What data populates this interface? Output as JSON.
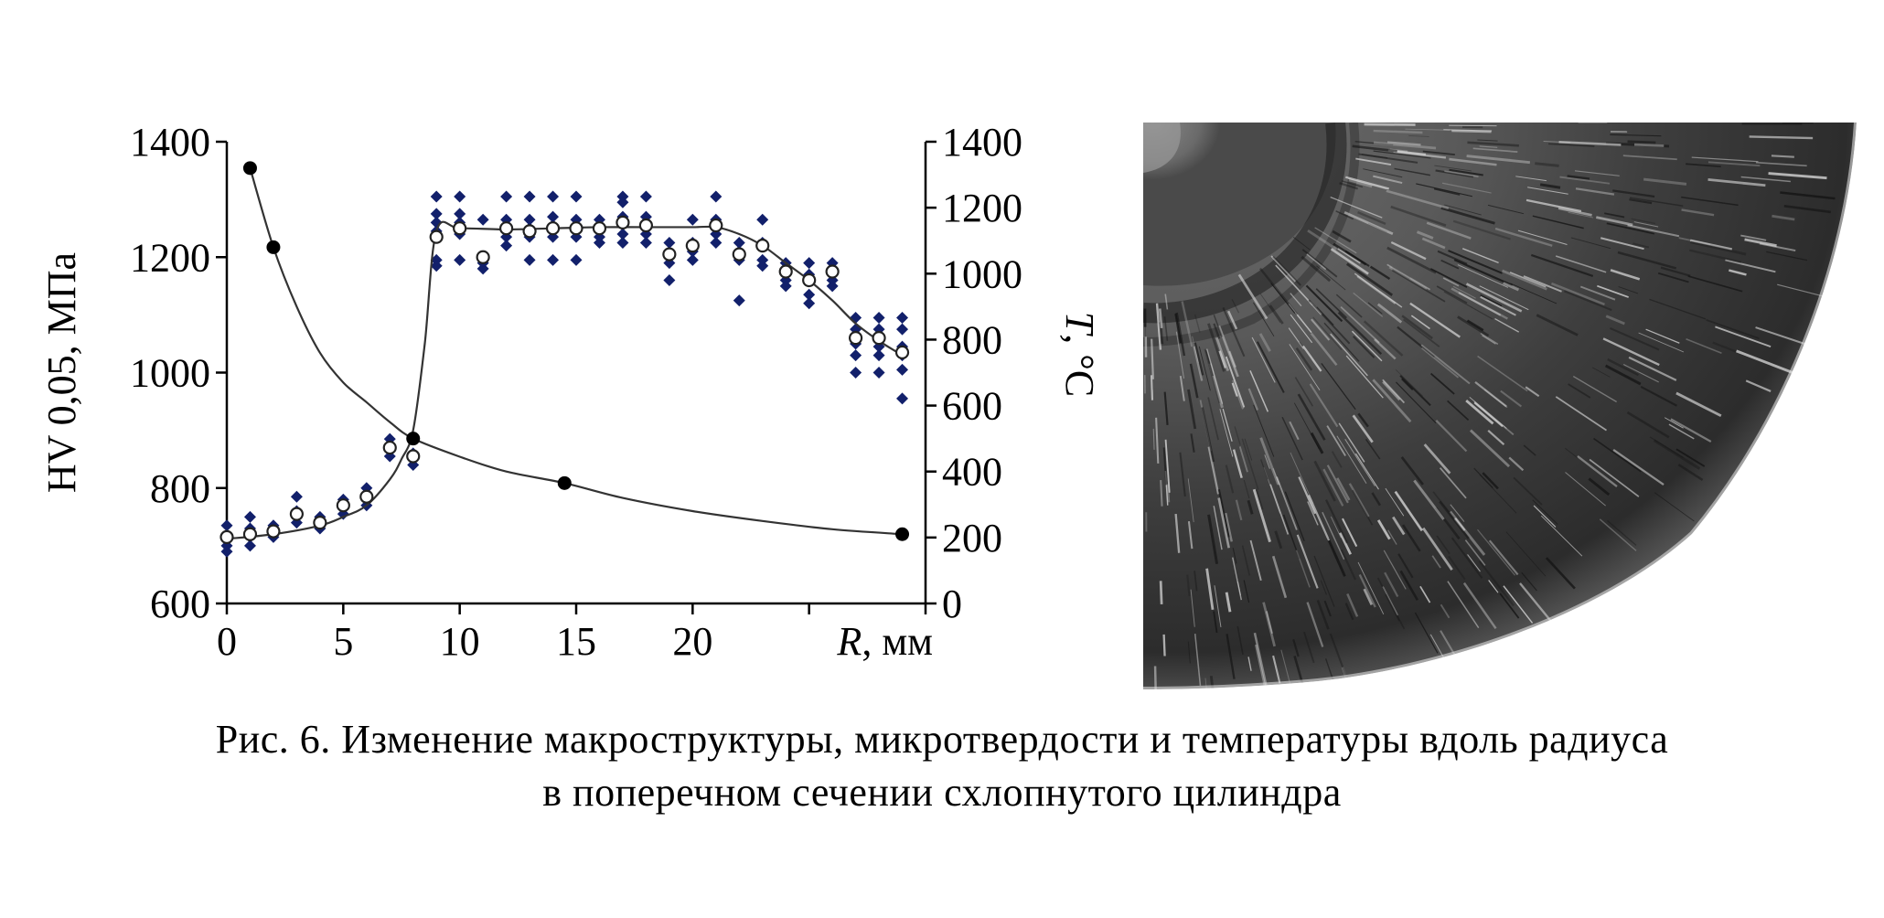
{
  "chart_data": {
    "type": "scatter",
    "x_range": [
      0,
      30
    ],
    "x_ticks": [
      "0",
      "5",
      "10",
      "15",
      "20"
    ],
    "x_tick_values": [
      0,
      5,
      10,
      15,
      20
    ],
    "xlabel_italic": "R",
    "xlabel_rest": ", мм",
    "left_axis": {
      "label": "HV 0,05, МПа",
      "range": [
        600,
        1400
      ],
      "ticks": [
        "600",
        "800",
        "1000",
        "1200",
        "1400"
      ]
    },
    "right_axis": {
      "label_italic": "T",
      "label_rest": ", °С",
      "range": [
        0,
        1400
      ],
      "ticks": [
        "0",
        "200",
        "400",
        "600",
        "800",
        "1000",
        "1200",
        "1400"
      ]
    },
    "grid": false,
    "series": [
      {
        "role": "hardness measurements",
        "axis": "left",
        "color": "#12206b",
        "marker": "diamond",
        "points": [
          [
            0,
            735
          ],
          [
            0,
            715
          ],
          [
            0,
            700
          ],
          [
            0,
            690
          ],
          [
            1,
            750
          ],
          [
            1,
            730
          ],
          [
            1,
            715
          ],
          [
            1,
            700
          ],
          [
            2,
            735
          ],
          [
            2,
            725
          ],
          [
            2,
            715
          ],
          [
            3,
            785
          ],
          [
            3,
            760
          ],
          [
            3,
            740
          ],
          [
            4,
            750
          ],
          [
            4,
            740
          ],
          [
            4,
            730
          ],
          [
            5,
            780
          ],
          [
            5,
            765
          ],
          [
            5,
            755
          ],
          [
            6,
            800
          ],
          [
            6,
            785
          ],
          [
            6,
            770
          ],
          [
            7,
            885
          ],
          [
            7,
            875
          ],
          [
            7,
            865
          ],
          [
            7,
            855
          ],
          [
            8,
            860
          ],
          [
            8,
            850
          ],
          [
            8,
            840
          ],
          [
            9,
            1305
          ],
          [
            9,
            1275
          ],
          [
            9,
            1260
          ],
          [
            9,
            1245
          ],
          [
            9,
            1195
          ],
          [
            9,
            1185
          ],
          [
            10,
            1305
          ],
          [
            10,
            1275
          ],
          [
            10,
            1260
          ],
          [
            10,
            1240
          ],
          [
            10,
            1195
          ],
          [
            11,
            1265
          ],
          [
            11,
            1200
          ],
          [
            11,
            1190
          ],
          [
            11,
            1180
          ],
          [
            12,
            1305
          ],
          [
            12,
            1265
          ],
          [
            12,
            1250
          ],
          [
            12,
            1235
          ],
          [
            12,
            1220
          ],
          [
            13,
            1305
          ],
          [
            13,
            1265
          ],
          [
            13,
            1250
          ],
          [
            13,
            1235
          ],
          [
            13,
            1195
          ],
          [
            14,
            1305
          ],
          [
            14,
            1270
          ],
          [
            14,
            1255
          ],
          [
            14,
            1235
          ],
          [
            14,
            1195
          ],
          [
            15,
            1305
          ],
          [
            15,
            1265
          ],
          [
            15,
            1250
          ],
          [
            15,
            1235
          ],
          [
            15,
            1195
          ],
          [
            16,
            1265
          ],
          [
            16,
            1250
          ],
          [
            16,
            1235
          ],
          [
            16,
            1225
          ],
          [
            17,
            1305
          ],
          [
            17,
            1295
          ],
          [
            17,
            1270
          ],
          [
            17,
            1260
          ],
          [
            17,
            1240
          ],
          [
            17,
            1225
          ],
          [
            18,
            1305
          ],
          [
            18,
            1270
          ],
          [
            18,
            1240
          ],
          [
            18,
            1225
          ],
          [
            19,
            1225
          ],
          [
            19,
            1205
          ],
          [
            19,
            1190
          ],
          [
            19,
            1160
          ],
          [
            20,
            1265
          ],
          [
            20,
            1225
          ],
          [
            20,
            1210
          ],
          [
            20,
            1195
          ],
          [
            21,
            1305
          ],
          [
            21,
            1265
          ],
          [
            21,
            1240
          ],
          [
            21,
            1225
          ],
          [
            22,
            1225
          ],
          [
            22,
            1210
          ],
          [
            22,
            1195
          ],
          [
            22,
            1125
          ],
          [
            23,
            1265
          ],
          [
            23,
            1225
          ],
          [
            23,
            1195
          ],
          [
            23,
            1185
          ],
          [
            24,
            1190
          ],
          [
            24,
            1175
          ],
          [
            24,
            1160
          ],
          [
            24,
            1150
          ],
          [
            25,
            1190
          ],
          [
            25,
            1170
          ],
          [
            25,
            1135
          ],
          [
            25,
            1120
          ],
          [
            26,
            1190
          ],
          [
            26,
            1175
          ],
          [
            26,
            1160
          ],
          [
            26,
            1150
          ],
          [
            27,
            1095
          ],
          [
            27,
            1075
          ],
          [
            27,
            1050
          ],
          [
            27,
            1030
          ],
          [
            27,
            1000
          ],
          [
            28,
            1095
          ],
          [
            28,
            1075
          ],
          [
            28,
            1045
          ],
          [
            28,
            1030
          ],
          [
            28,
            1000
          ],
          [
            29,
            1095
          ],
          [
            29,
            1075
          ],
          [
            29,
            1045
          ],
          [
            29,
            1030
          ],
          [
            29,
            1005
          ],
          [
            29,
            955
          ]
        ]
      },
      {
        "role": "mean hardness",
        "axis": "left",
        "color": "#222222",
        "marker": "open-circle",
        "x": [
          0,
          1,
          2,
          3,
          4,
          5,
          6,
          7,
          8,
          9,
          10,
          11,
          12,
          13,
          14,
          15,
          16,
          17,
          18,
          19,
          20,
          21,
          22,
          23,
          24,
          25,
          26,
          27,
          28,
          29
        ],
        "y": [
          715,
          720,
          725,
          755,
          740,
          770,
          785,
          870,
          855,
          1235,
          1250,
          1200,
          1250,
          1245,
          1250,
          1250,
          1250,
          1260,
          1255,
          1205,
          1220,
          1255,
          1205,
          1220,
          1175,
          1160,
          1175,
          1060,
          1060,
          1035
        ],
        "curve_x": [
          0,
          2,
          4,
          5,
          6,
          7,
          7.5,
          8,
          8.5,
          9,
          10,
          12,
          14,
          16,
          18,
          20,
          21,
          22,
          23,
          24,
          25,
          26,
          27,
          28,
          29
        ],
        "curve_y": [
          712,
          720,
          735,
          750,
          770,
          815,
          850,
          900,
          1050,
          1245,
          1250,
          1248,
          1250,
          1252,
          1252,
          1252,
          1252,
          1240,
          1220,
          1190,
          1160,
          1125,
          1085,
          1055,
          1030
        ]
      },
      {
        "role": "temperature",
        "axis": "right",
        "color": "#000000",
        "marker": "filled-circle",
        "x": [
          1,
          2,
          8,
          14.5,
          29
        ],
        "y": [
          1320,
          1080,
          500,
          365,
          210
        ],
        "curve_x": [
          1,
          2,
          3,
          4,
          5,
          6,
          7,
          8,
          10,
          12,
          14.5,
          17,
          20,
          23,
          26,
          29
        ],
        "curve_y": [
          1320,
          1080,
          900,
          760,
          670,
          610,
          550,
          500,
          445,
          400,
          365,
          320,
          280,
          250,
          225,
          210
        ]
      }
    ]
  },
  "photo": {
    "description_icon": "macrostructure-photo"
  },
  "caption": {
    "line1": "Рис. 6. Изменение макроструктуры, микротвердости и температуры вдоль радиуса",
    "line2": "в поперечном сечении схлопнутого цилиндра"
  }
}
